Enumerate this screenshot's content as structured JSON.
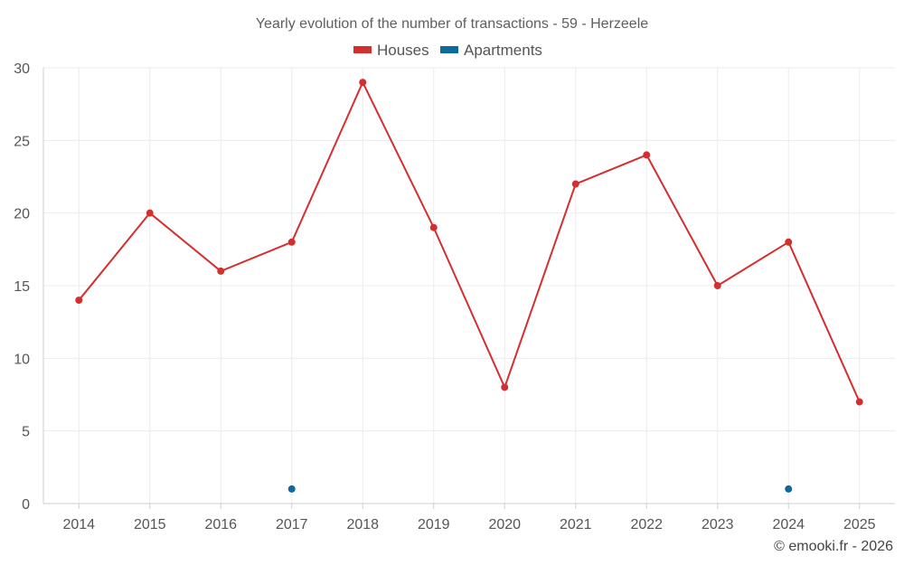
{
  "chart_data": {
    "type": "line",
    "title": "Yearly evolution of the number of transactions - 59 - Herzeele",
    "categories": [
      "2014",
      "2015",
      "2016",
      "2017",
      "2018",
      "2019",
      "2020",
      "2021",
      "2022",
      "2023",
      "2024",
      "2025"
    ],
    "series": [
      {
        "name": "Houses",
        "color": "#d32f2f",
        "line": true,
        "values": [
          14,
          20,
          16,
          18,
          29,
          19,
          8,
          22,
          24,
          15,
          18,
          7
        ]
      },
      {
        "name": "Apartments",
        "color": "#0d6a9f",
        "line": false,
        "values": [
          null,
          null,
          null,
          1,
          null,
          null,
          null,
          null,
          null,
          null,
          1,
          null
        ]
      }
    ],
    "ylim": [
      0,
      30
    ],
    "yticks": [
      0,
      5,
      10,
      15,
      20,
      25,
      30
    ],
    "xlabel": "",
    "ylabel": "",
    "grid": true,
    "legend_position": "top-center"
  },
  "credit": "© emooki.fr - 2026"
}
